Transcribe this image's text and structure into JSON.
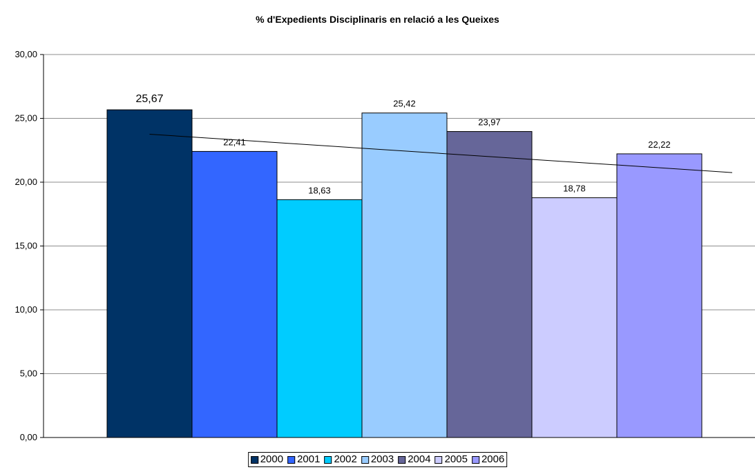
{
  "chart_data": {
    "type": "bar",
    "title": "% d'Expedients Disciplinaris en relació a les Queixes",
    "xlabel": "",
    "ylabel": "",
    "ylim": [
      0,
      30
    ],
    "yticks": [
      "0,00",
      "5,00",
      "10,00",
      "15,00",
      "20,00",
      "25,00",
      "30,00"
    ],
    "grid": "horizontal",
    "legend_position": "bottom",
    "trendline": "linear",
    "series": [
      {
        "name": "2000",
        "value": 25.67,
        "label": "25,67",
        "color": "#003366"
      },
      {
        "name": "2001",
        "value": 22.41,
        "label": "22,41",
        "color": "#3366FF"
      },
      {
        "name": "2002",
        "value": 18.63,
        "label": "18,63",
        "color": "#00CCFF"
      },
      {
        "name": "2003",
        "value": 25.42,
        "label": "25,42",
        "color": "#99CCFF"
      },
      {
        "name": "2004",
        "value": 23.97,
        "label": "23,97",
        "color": "#666699"
      },
      {
        "name": "2005",
        "value": 18.78,
        "label": "18,78",
        "color": "#CCCCFF"
      },
      {
        "name": "2006",
        "value": 22.22,
        "label": "22,22",
        "color": "#9999FF"
      }
    ]
  }
}
